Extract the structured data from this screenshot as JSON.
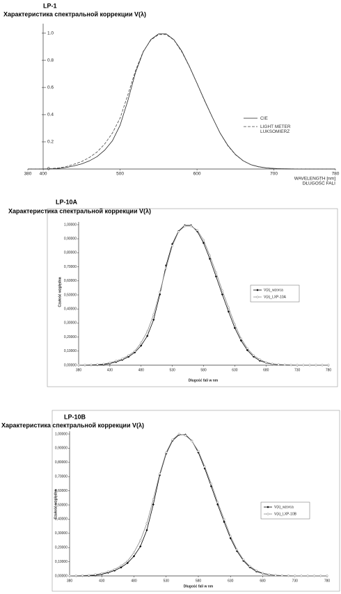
{
  "chart_data": [
    {
      "type": "line",
      "title": "LP-1",
      "subtitle": "Характеристика спектральной коррекции V(λ)",
      "xlabel": [
        "WAVELENGTH [nm]",
        "DŁUGOŚĆ FALI"
      ],
      "x": [
        380,
        390,
        400,
        410,
        420,
        430,
        440,
        450,
        460,
        470,
        480,
        490,
        500,
        510,
        520,
        530,
        540,
        550,
        560,
        570,
        580,
        590,
        600,
        610,
        620,
        630,
        640,
        650,
        660,
        670,
        680,
        690,
        700,
        710,
        720,
        730,
        740,
        750,
        760,
        770,
        780
      ],
      "xlim": [
        380,
        780
      ],
      "xticks": [
        380,
        400,
        500,
        600,
        700,
        780
      ],
      "ylim": [
        0,
        1.05
      ],
      "yticks": [
        0,
        0.2,
        0.4,
        0.6,
        0.8,
        {
          "value": 1,
          "label": "1.0"
        }
      ],
      "legend": "right",
      "series": [
        {
          "name": "CIE",
          "color": "#222222",
          "line_style": "solid",
          "values": [
            4e-05,
            0.00012,
            0.0004,
            0.0012,
            0.004,
            0.0116,
            0.023,
            0.038,
            0.06,
            0.091,
            0.139,
            0.208,
            0.323,
            0.503,
            0.71,
            0.862,
            0.954,
            0.995,
            0.995,
            0.952,
            0.87,
            0.757,
            0.631,
            0.503,
            0.381,
            0.265,
            0.175,
            0.107,
            0.061,
            0.032,
            0.017,
            0.0082,
            0.0041,
            0.0021,
            0.00105,
            0.00052,
            0.00025,
            0.00012,
            6e-05,
            3e-05,
            1.5e-05
          ]
        },
        {
          "name": "LIGHT METER LUKSOMIERZ",
          "color": "#444444",
          "line_style": "dashed",
          "values": [
            0.0001,
            0.0003,
            0.001,
            0.003,
            0.008,
            0.018,
            0.035,
            0.055,
            0.085,
            0.125,
            0.185,
            0.265,
            0.375,
            0.545,
            0.725,
            0.865,
            0.95,
            0.99,
            0.99,
            0.95,
            0.865,
            0.755,
            0.63,
            0.5,
            0.38,
            0.265,
            0.172,
            0.105,
            0.06,
            0.032,
            0.016,
            0.008,
            0.004,
            0.002,
            0.001,
            0.0005,
            0.0002,
            0.0001,
            5e-05,
            2e-05,
            1e-05
          ]
        }
      ]
    },
    {
      "type": "line",
      "title": "LP-10A",
      "subtitle": "Характеристика спектральной коррекции V(λ)",
      "xlabel": "Długość fali w nm",
      "ylabel": "Czułość względna",
      "x": [
        380,
        390,
        400,
        410,
        420,
        430,
        440,
        450,
        460,
        470,
        480,
        490,
        500,
        510,
        520,
        530,
        540,
        550,
        560,
        570,
        580,
        590,
        600,
        610,
        620,
        630,
        640,
        650,
        660,
        670,
        680,
        690,
        700,
        710,
        720,
        730,
        740,
        750,
        760,
        770,
        780
      ],
      "xlim": [
        380,
        780
      ],
      "xticks": [
        380,
        430,
        480,
        530,
        580,
        630,
        680,
        730,
        780
      ],
      "ylim": [
        0,
        1
      ],
      "yticks": [
        {
          "value": 0,
          "label": "0,00000"
        },
        {
          "value": 0.1,
          "label": "0,10000"
        },
        {
          "value": 0.2,
          "label": "0,20000"
        },
        {
          "value": 0.3,
          "label": "0,30000"
        },
        {
          "value": 0.4,
          "label": "0,40000"
        },
        {
          "value": 0.5,
          "label": "0,50000"
        },
        {
          "value": 0.6,
          "label": "0,60000"
        },
        {
          "value": 0.7,
          "label": "0,70000"
        },
        {
          "value": 0.8,
          "label": "0,80000"
        },
        {
          "value": 0.9,
          "label": "0,90000"
        },
        {
          "value": 1,
          "label": "1,00000"
        }
      ],
      "legend": "right",
      "series": [
        {
          "name": "V(λ)_wzorca",
          "color": "#000000",
          "marker": "diamond",
          "values": [
            4e-05,
            0.00012,
            0.0004,
            0.0012,
            0.004,
            0.0116,
            0.023,
            0.038,
            0.06,
            0.091,
            0.139,
            0.208,
            0.323,
            0.503,
            0.71,
            0.862,
            0.954,
            0.995,
            0.995,
            0.952,
            0.87,
            0.757,
            0.631,
            0.503,
            0.381,
            0.265,
            0.175,
            0.107,
            0.061,
            0.032,
            0.017,
            0.0082,
            0.0041,
            0.0021,
            0.00105,
            0.00052,
            0.00025,
            0.00012,
            6e-05,
            3e-05,
            1.5e-05
          ]
        },
        {
          "name": "V(λ)_LXP-10A",
          "color": "#888888",
          "marker": "circle",
          "values": [
            0.001,
            0.002,
            0.003,
            0.005,
            0.009,
            0.017,
            0.03,
            0.045,
            0.07,
            0.1,
            0.16,
            0.24,
            0.36,
            0.52,
            0.69,
            0.85,
            0.95,
            0.99,
            0.99,
            0.96,
            0.89,
            0.78,
            0.66,
            0.53,
            0.41,
            0.29,
            0.19,
            0.12,
            0.07,
            0.04,
            0.02,
            0.01,
            0.005,
            0.003,
            0.002,
            0.001,
            0.001,
            0.001,
            0.001,
            0.001,
            0.001
          ]
        }
      ]
    },
    {
      "type": "line",
      "title": "LP-10B",
      "subtitle": "Характеристика спектральной коррекции V(λ)",
      "xlabel": "Długość fali w nm",
      "ylabel": "Czułość względna",
      "x": [
        380,
        390,
        400,
        410,
        420,
        430,
        440,
        450,
        460,
        470,
        480,
        490,
        500,
        510,
        520,
        530,
        540,
        550,
        560,
        570,
        580,
        590,
        600,
        610,
        620,
        630,
        640,
        650,
        660,
        670,
        680,
        690,
        700,
        710,
        720,
        730,
        740,
        750,
        760,
        770,
        780
      ],
      "xlim": [
        380,
        780
      ],
      "xticks": [
        380,
        430,
        480,
        530,
        580,
        630,
        680,
        730,
        780
      ],
      "ylim": [
        0,
        1
      ],
      "yticks": [
        {
          "value": 0,
          "label": "0,00000"
        },
        {
          "value": 0.1,
          "label": "0,10000"
        },
        {
          "value": 0.2,
          "label": "0,20000"
        },
        {
          "value": 0.3,
          "label": "0,30000"
        },
        {
          "value": 0.4,
          "label": "0,40000"
        },
        {
          "value": 0.5,
          "label": "0,50000"
        },
        {
          "value": 0.6,
          "label": "0,60000"
        },
        {
          "value": 0.7,
          "label": "0,70000"
        },
        {
          "value": 0.8,
          "label": "0,80000"
        },
        {
          "value": 0.9,
          "label": "0,90000"
        },
        {
          "value": 1,
          "label": "1,00000"
        }
      ],
      "legend": "right",
      "series": [
        {
          "name": "V(λ)_wzorca",
          "color": "#000000",
          "marker": "diamond",
          "values": [
            4e-05,
            0.00012,
            0.0004,
            0.0012,
            0.004,
            0.0116,
            0.023,
            0.038,
            0.06,
            0.091,
            0.139,
            0.208,
            0.323,
            0.503,
            0.71,
            0.862,
            0.954,
            0.995,
            0.995,
            0.952,
            0.87,
            0.757,
            0.631,
            0.503,
            0.381,
            0.265,
            0.175,
            0.107,
            0.061,
            0.032,
            0.017,
            0.0082,
            0.0041,
            0.0021,
            0.00105,
            0.00052,
            0.00025,
            0.00012,
            6e-05,
            3e-05,
            1.5e-05
          ]
        },
        {
          "name": "V(λ)_LXP-10B",
          "color": "#888888",
          "marker": "circle",
          "values": [
            0.001,
            0.002,
            0.003,
            0.005,
            0.01,
            0.018,
            0.03,
            0.046,
            0.072,
            0.105,
            0.165,
            0.25,
            0.37,
            0.54,
            0.72,
            0.87,
            0.96,
            1,
            0.99,
            0.95,
            0.88,
            0.77,
            0.65,
            0.52,
            0.4,
            0.28,
            0.185,
            0.115,
            0.068,
            0.038,
            0.02,
            0.01,
            0.005,
            0.003,
            0.002,
            0.001,
            0.001,
            0.001,
            0.001,
            0.001,
            0.001
          ]
        }
      ]
    }
  ]
}
